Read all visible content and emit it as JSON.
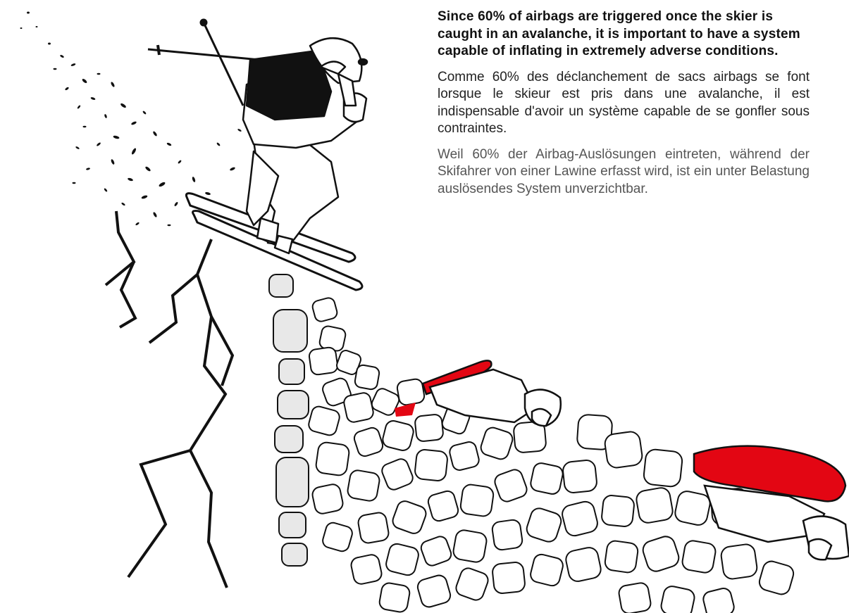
{
  "text": {
    "english": "Since 60% of airbags are triggered once the skier is caught in an avalanche, it is important to have a system capable of inflating in extremely adverse conditions.",
    "french": "Comme 60% des déclanchement de sacs airbags se font lorsque le skieur est pris dans une avalanche, il est indispensable d'avoir un système capable de se gonfler sous contraintes.",
    "german": "Weil 60% der Airbag-Auslösungen eintreten, während der Skifahrer von einer Lawine erfasst wird, ist ein unter Belastung auslösendes System unverzichtbar."
  },
  "colors": {
    "airbag": "#e30613",
    "ink": "#111111",
    "snow_shadow": "#e8e8e8"
  },
  "icons": {
    "skier": "skier-jumping-illustration",
    "avalanche": "avalanche-blocks-illustration",
    "airbag": "airbag-red-shape"
  }
}
